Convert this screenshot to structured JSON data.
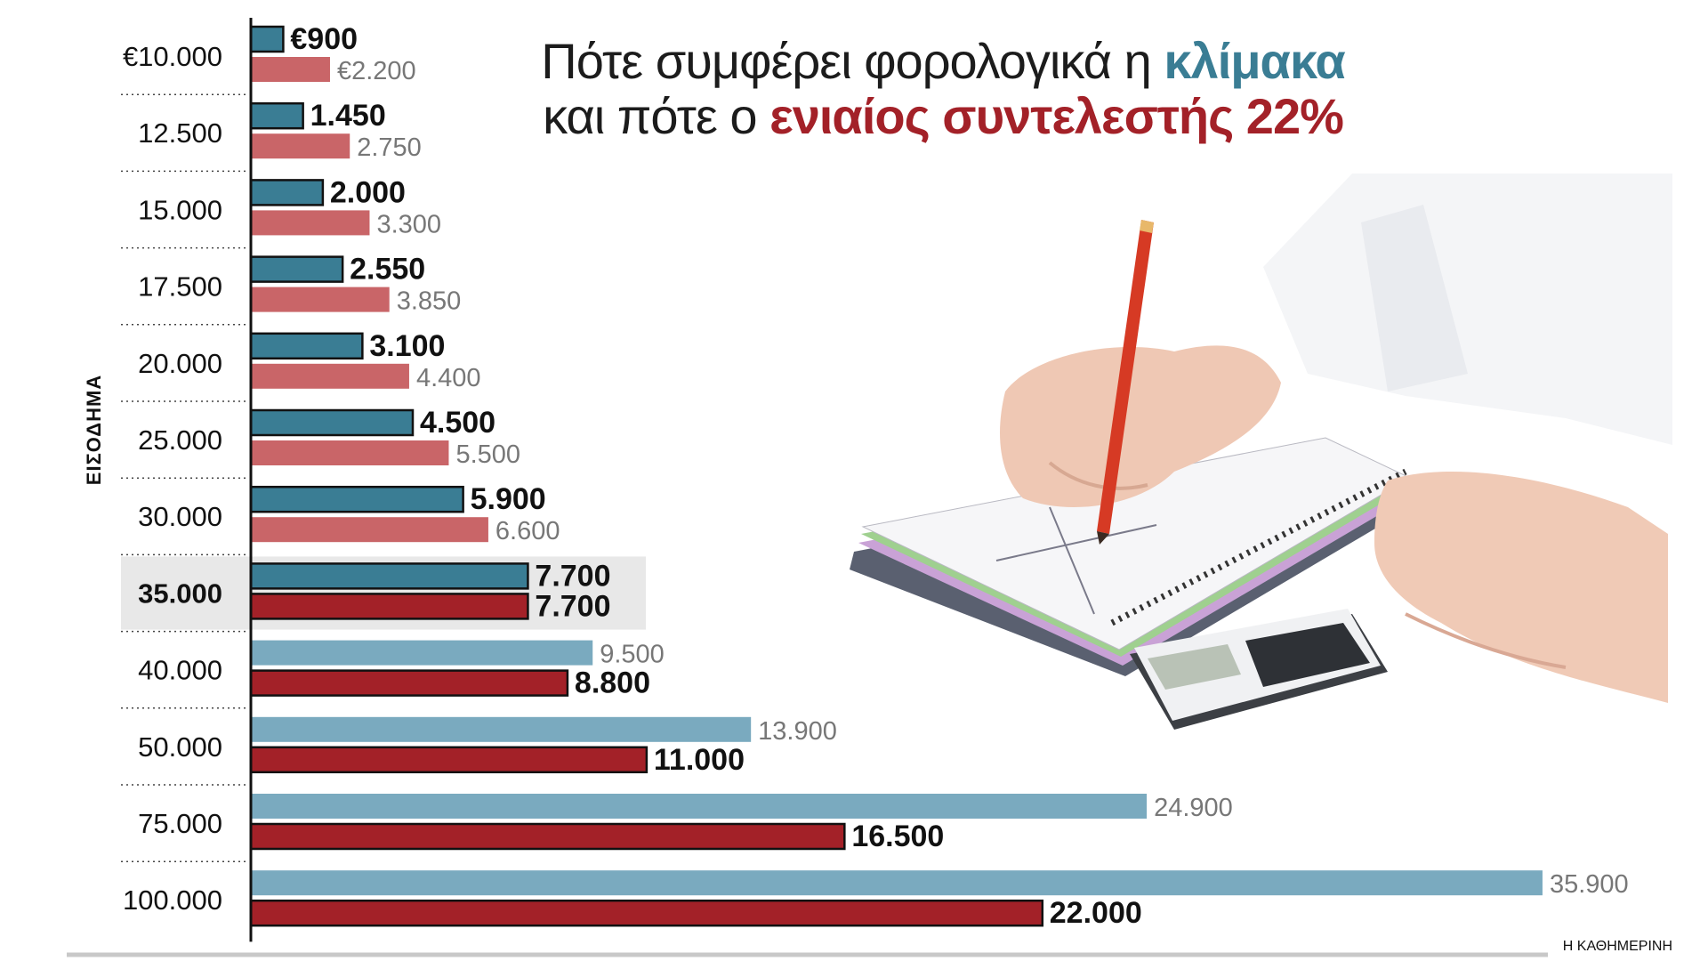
{
  "title": {
    "line1_prefix": "Πότε συμφέρει φορολογικά η ",
    "line1_highlight": "κλίμακα",
    "line2_prefix": "και πότε ο ",
    "line2_highlight": "ενιαίος συντελεστής 22%"
  },
  "y_axis_label": "ΕΙΣΟΔΗΜΑ",
  "source": "Η ΚΑΘΗΜΕΡΙΝΗ",
  "colors": {
    "scale_dark": "#3a7d94",
    "scale_light": "#7aaabf",
    "flat_light": "#c96568",
    "flat_dark": "#a32128",
    "highlight_row": "#e8e8e8"
  },
  "chart_data": {
    "type": "bar",
    "orientation": "horizontal",
    "categories": [
      "€10.000",
      "12.500",
      "15.000",
      "17.500",
      "20.000",
      "25.000",
      "30.000",
      "35.000",
      "40.000",
      "50.000",
      "75.000",
      "100.000"
    ],
    "series": [
      {
        "values": [
          900,
          1450,
          2000,
          2550,
          3100,
          4500,
          5900,
          7700,
          9500,
          13900,
          24900,
          35900
        ],
        "labels": [
          "€900",
          "1.450",
          "2.000",
          "2.550",
          "3.100",
          "4.500",
          "5.900",
          "7.700",
          "9.500",
          "13.900",
          "24.900",
          "35.900"
        ]
      },
      {
        "values": [
          2200,
          2750,
          3300,
          3850,
          4400,
          5500,
          6600,
          7700,
          8800,
          11000,
          16500,
          22000
        ],
        "labels": [
          "€2.200",
          "2.750",
          "3.300",
          "3.850",
          "4.400",
          "5.500",
          "6.600",
          "7.700",
          "8.800",
          "11.000",
          "16.500",
          "22.000"
        ]
      }
    ],
    "highlighted_category": "35.000",
    "xlim": [
      0,
      36000
    ]
  }
}
